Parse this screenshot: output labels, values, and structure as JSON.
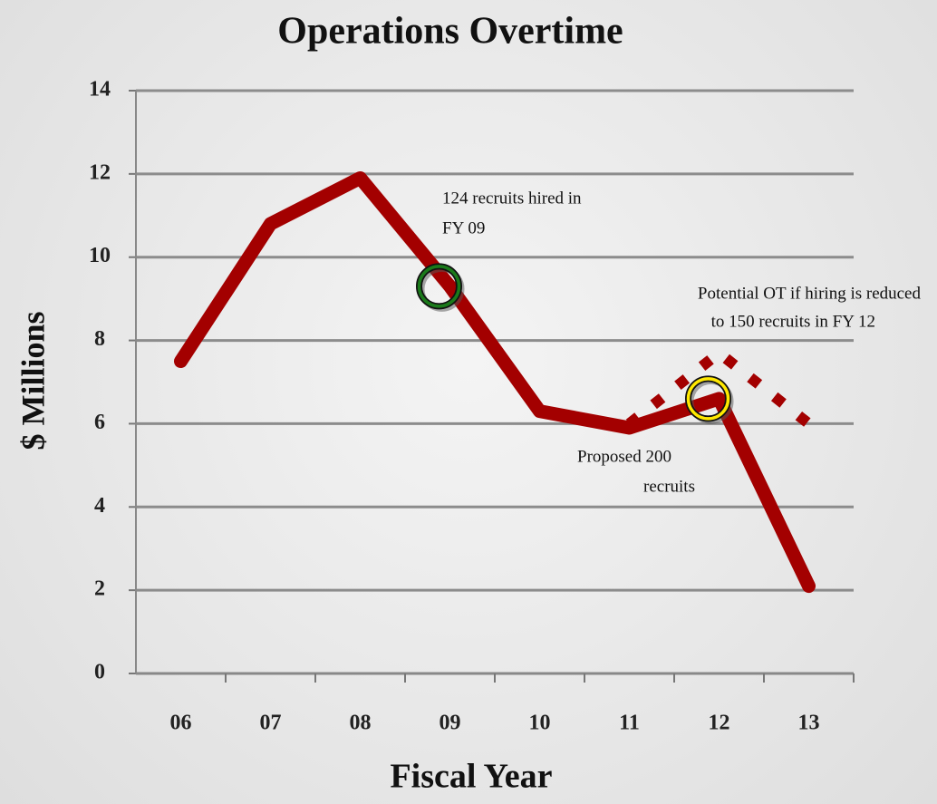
{
  "chart_data": {
    "type": "line",
    "title": "Operations Overtime",
    "xlabel": "Fiscal Year",
    "ylabel": "$ Millions",
    "categories": [
      "06",
      "07",
      "08",
      "09",
      "10",
      "11",
      "12",
      "13"
    ],
    "series": [
      {
        "color": "#a30000",
        "style": "solid",
        "values": [
          7.5,
          10.8,
          11.9,
          9.3,
          6.3,
          5.9,
          6.6,
          2.1
        ]
      },
      {
        "color": "#a30000",
        "style": "dotted",
        "values": [
          null,
          null,
          null,
          null,
          null,
          6.0,
          7.7,
          6.0
        ]
      }
    ],
    "annotations": [
      "124 recruits hired in",
      "FY 09",
      "Potential OT if hiring is reduced",
      "to 150 recruits in FY 12",
      "Proposed 200",
      "recruits"
    ],
    "ylim": [
      0,
      14
    ],
    "yticks": [
      0,
      2,
      4,
      6,
      8,
      10,
      12,
      14
    ],
    "grid": true
  }
}
